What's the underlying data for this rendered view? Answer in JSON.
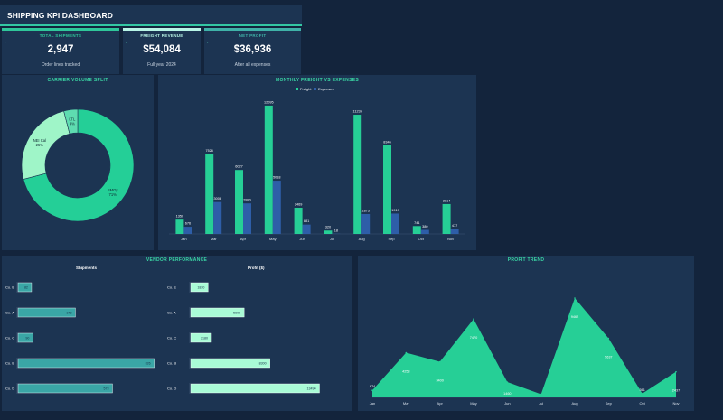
{
  "header": {
    "title": "SHIPPING KPI DASHBOARD"
  },
  "kpis": [
    {
      "label": "TOTAL SHIPMENTS",
      "value": "2,947",
      "sub": "Order lines tracked",
      "color": "#2fc79a"
    },
    {
      "label": "FREIGHT REVENUE",
      "value": "$54,084",
      "sub": "Full year 2024",
      "color": "#b8f5e6"
    },
    {
      "label": "NET PROFIT",
      "value": "$36,936",
      "sub": "After all expenses",
      "color": "#3fb2a8"
    }
  ],
  "chart_data": [
    {
      "type": "pie",
      "title": "CARRIER VOLUME SPLIT",
      "slices": [
        {
          "label": "SMGy",
          "percent": "71%",
          "value": 71,
          "color": "#24cf97"
        },
        {
          "label": "NEI Cal",
          "percent": "25%",
          "value": 25,
          "color": "#9ff5c8"
        },
        {
          "label": "LTL",
          "percent": "4%",
          "value": 4,
          "color": "#5edcb0"
        }
      ]
    },
    {
      "type": "bar",
      "title": "MONTHLY FREIGHT vs EXPENSES",
      "legend_position": "top-center",
      "categories": [
        "Jan",
        "Mar",
        "Apr",
        "May",
        "Jun",
        "Jul",
        "Aug",
        "Sep",
        "Oct",
        "Nov"
      ],
      "series": [
        {
          "name": "Freight",
          "color": "#26cf96",
          "values": [
            1350,
            7526,
            6027,
            12095,
            2469,
            320,
            11235,
            8346,
            741,
            2814
          ],
          "labels": [
            "1350",
            "7526",
            "6027",
            "12095",
            "2469",
            "320",
            "11235",
            "8346",
            "741",
            "2814"
          ]
        },
        {
          "name": "Expenses",
          "color": "#2e5ea8",
          "values": [
            676,
            3008,
            2880,
            5018,
            881,
            18,
            1873,
            1919,
            380,
            477
          ],
          "labels": [
            "676",
            "3008",
            "2880",
            "5018",
            "881",
            "18",
            "1873",
            "1919",
            "380",
            "477"
          ]
        }
      ],
      "ylim": [
        0,
        12600
      ]
    },
    {
      "type": "bar",
      "orientation": "horizontal",
      "title": "VENDOR PERFORMANCE",
      "xlabel": "Shipments",
      "categories": [
        "Co. E",
        "Co. A",
        "Co. C",
        "Co. B",
        "Co. D"
      ],
      "values": [
        82,
        348,
        90,
        826,
        573
      ],
      "labels": [
        "82",
        "348",
        "90",
        "826",
        "573"
      ],
      "xlim": [
        0,
        850
      ],
      "color": "#3aa6a6"
    },
    {
      "type": "bar",
      "orientation": "horizontal",
      "xlabel": "Profit ($)",
      "categories": [
        "Co. E",
        "Co. A",
        "Co. C",
        "Co. B",
        "Co. D"
      ],
      "values": [
        1830,
        5600,
        2180,
        8300,
        13490
      ],
      "labels": [
        "1830",
        "5600",
        "2180",
        "8300",
        "13490"
      ],
      "xlim": [
        0,
        14200
      ],
      "color": "#a9fbd6"
    },
    {
      "type": "area",
      "title": "PROFIT TREND",
      "categories": [
        "Jan",
        "Mar",
        "Apr",
        "May",
        "Jun",
        "Jul",
        "Aug",
        "Sep",
        "Oct",
        "Nov"
      ],
      "values": [
        674,
        4258,
        3400,
        7470,
        1460,
        298,
        9462,
        5637,
        361,
        2437
      ],
      "labels": [
        "674",
        "4258",
        "3400",
        "7470",
        "1460",
        "",
        "9462",
        "5637",
        "361",
        "2437"
      ],
      "ylim": [
        0,
        10500
      ],
      "color": "#26cf96"
    }
  ]
}
